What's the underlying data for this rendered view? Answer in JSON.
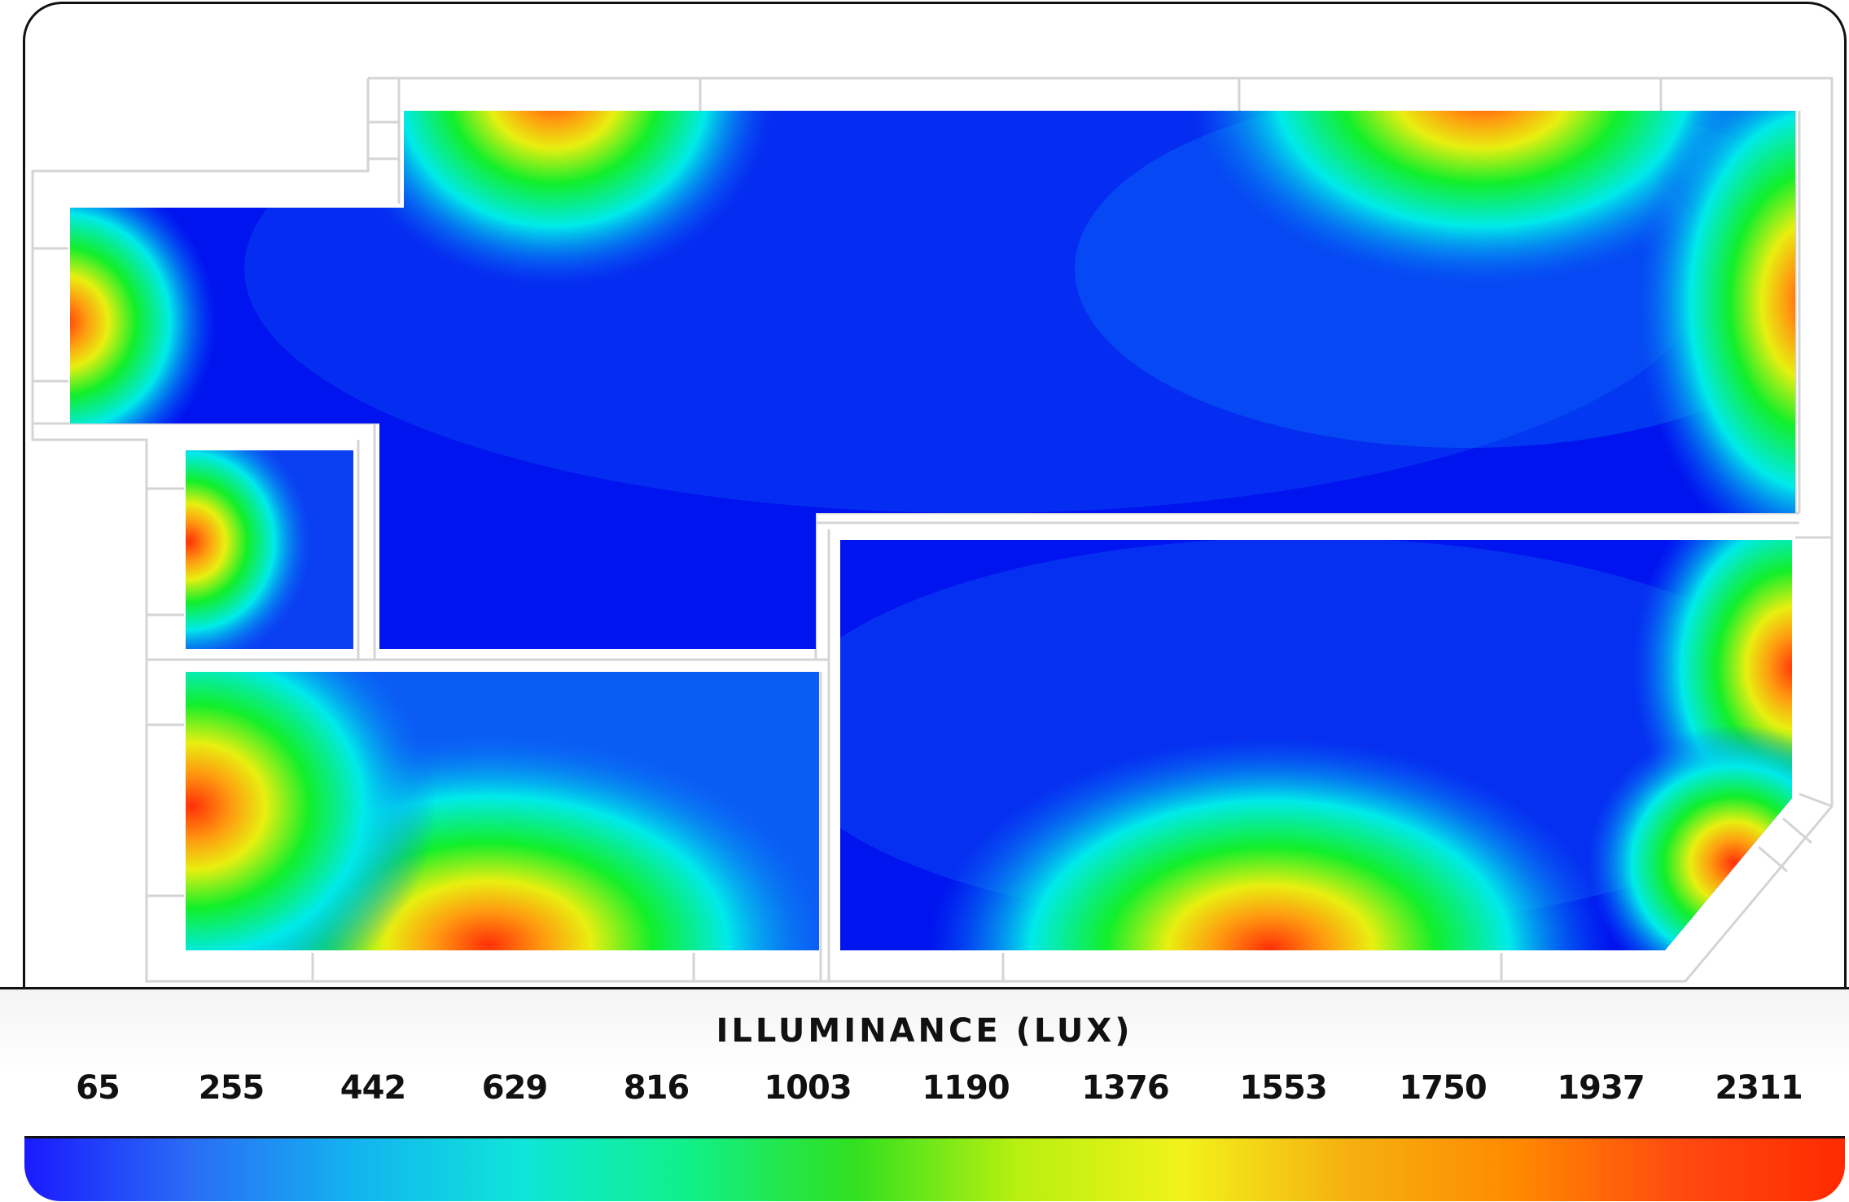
{
  "legend": {
    "title": "ILLUMINANCE (LUX)",
    "ticks": [
      "65",
      "255",
      "442",
      "629",
      "816",
      "1003",
      "1190",
      "1376",
      "1553",
      "1750",
      "1937",
      "2311"
    ],
    "colors": [
      "#1a1aff",
      "#2a6cf5",
      "#13b4ef",
      "#0fe5d9",
      "#10f08a",
      "#30e020",
      "#b8f010",
      "#f2f21a",
      "#f5b010",
      "#ff8a00",
      "#ff4a10",
      "#ff2a00"
    ]
  },
  "heatmap_colors": {
    "base": "#0014f0",
    "low": "#0a6cf6",
    "cyan": "#00eaea",
    "green": "#12ef2a",
    "yellow": "#e8ef10",
    "orange": "#ff9a10",
    "red": "#ff3008",
    "wall": "#d8d8d8"
  }
}
